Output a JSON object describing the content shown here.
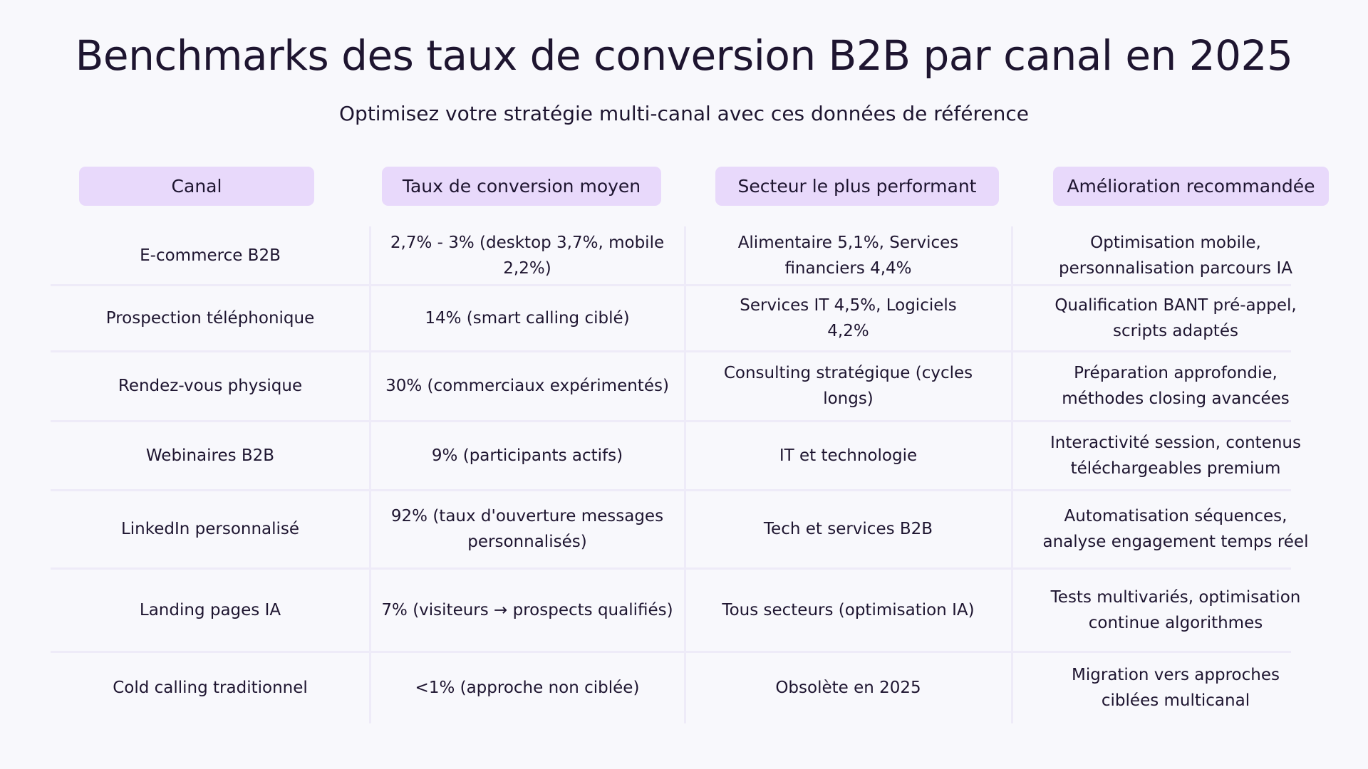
{
  "header": {
    "title": "Benchmarks des taux de conversion B2B par canal en 2025",
    "subtitle": "Optimisez votre stratégie multi-canal avec ces données de référence"
  },
  "table": {
    "headers": [
      "Canal",
      "Taux de conversion moyen",
      "Secteur le plus performant",
      "Amélioration recommandée"
    ],
    "rows": [
      [
        "E-commerce B2B",
        "2,7% - 3% (desktop 3,7%, mobile 2,2%)",
        "Alimentaire 5,1%, Services financiers 4,4%",
        "Optimisation mobile, personnalisation parcours IA"
      ],
      [
        "Prospection téléphonique",
        "14% (smart calling ciblé)",
        "Services IT 4,5%, Logiciels 4,2%",
        "Qualification BANT pré-appel, scripts adaptés"
      ],
      [
        "Rendez-vous physique",
        "30% (commerciaux expérimentés)",
        "Consulting stratégique (cycles longs)",
        "Préparation approfondie, méthodes closing avancées"
      ],
      [
        "Webinaires B2B",
        "9% (participants actifs)",
        "IT et technologie",
        "Interactivité session, contenus téléchargeables premium"
      ],
      [
        "LinkedIn personnalisé",
        "92% (taux d'ouverture messages personnalisés)",
        "Tech et services B2B",
        "Automatisation séquences, analyse engagement temps réel"
      ],
      [
        "Landing pages IA",
        "7% (visiteurs → prospects qualifiés)",
        "Tous secteurs (optimisation IA)",
        "Tests multivariés, optimisation continue algorithmes"
      ],
      [
        "Cold calling traditionnel",
        "<1% (approche non ciblée)",
        "Obsolète en 2025",
        "Migration vers approches ciblées multicanal"
      ]
    ]
  }
}
